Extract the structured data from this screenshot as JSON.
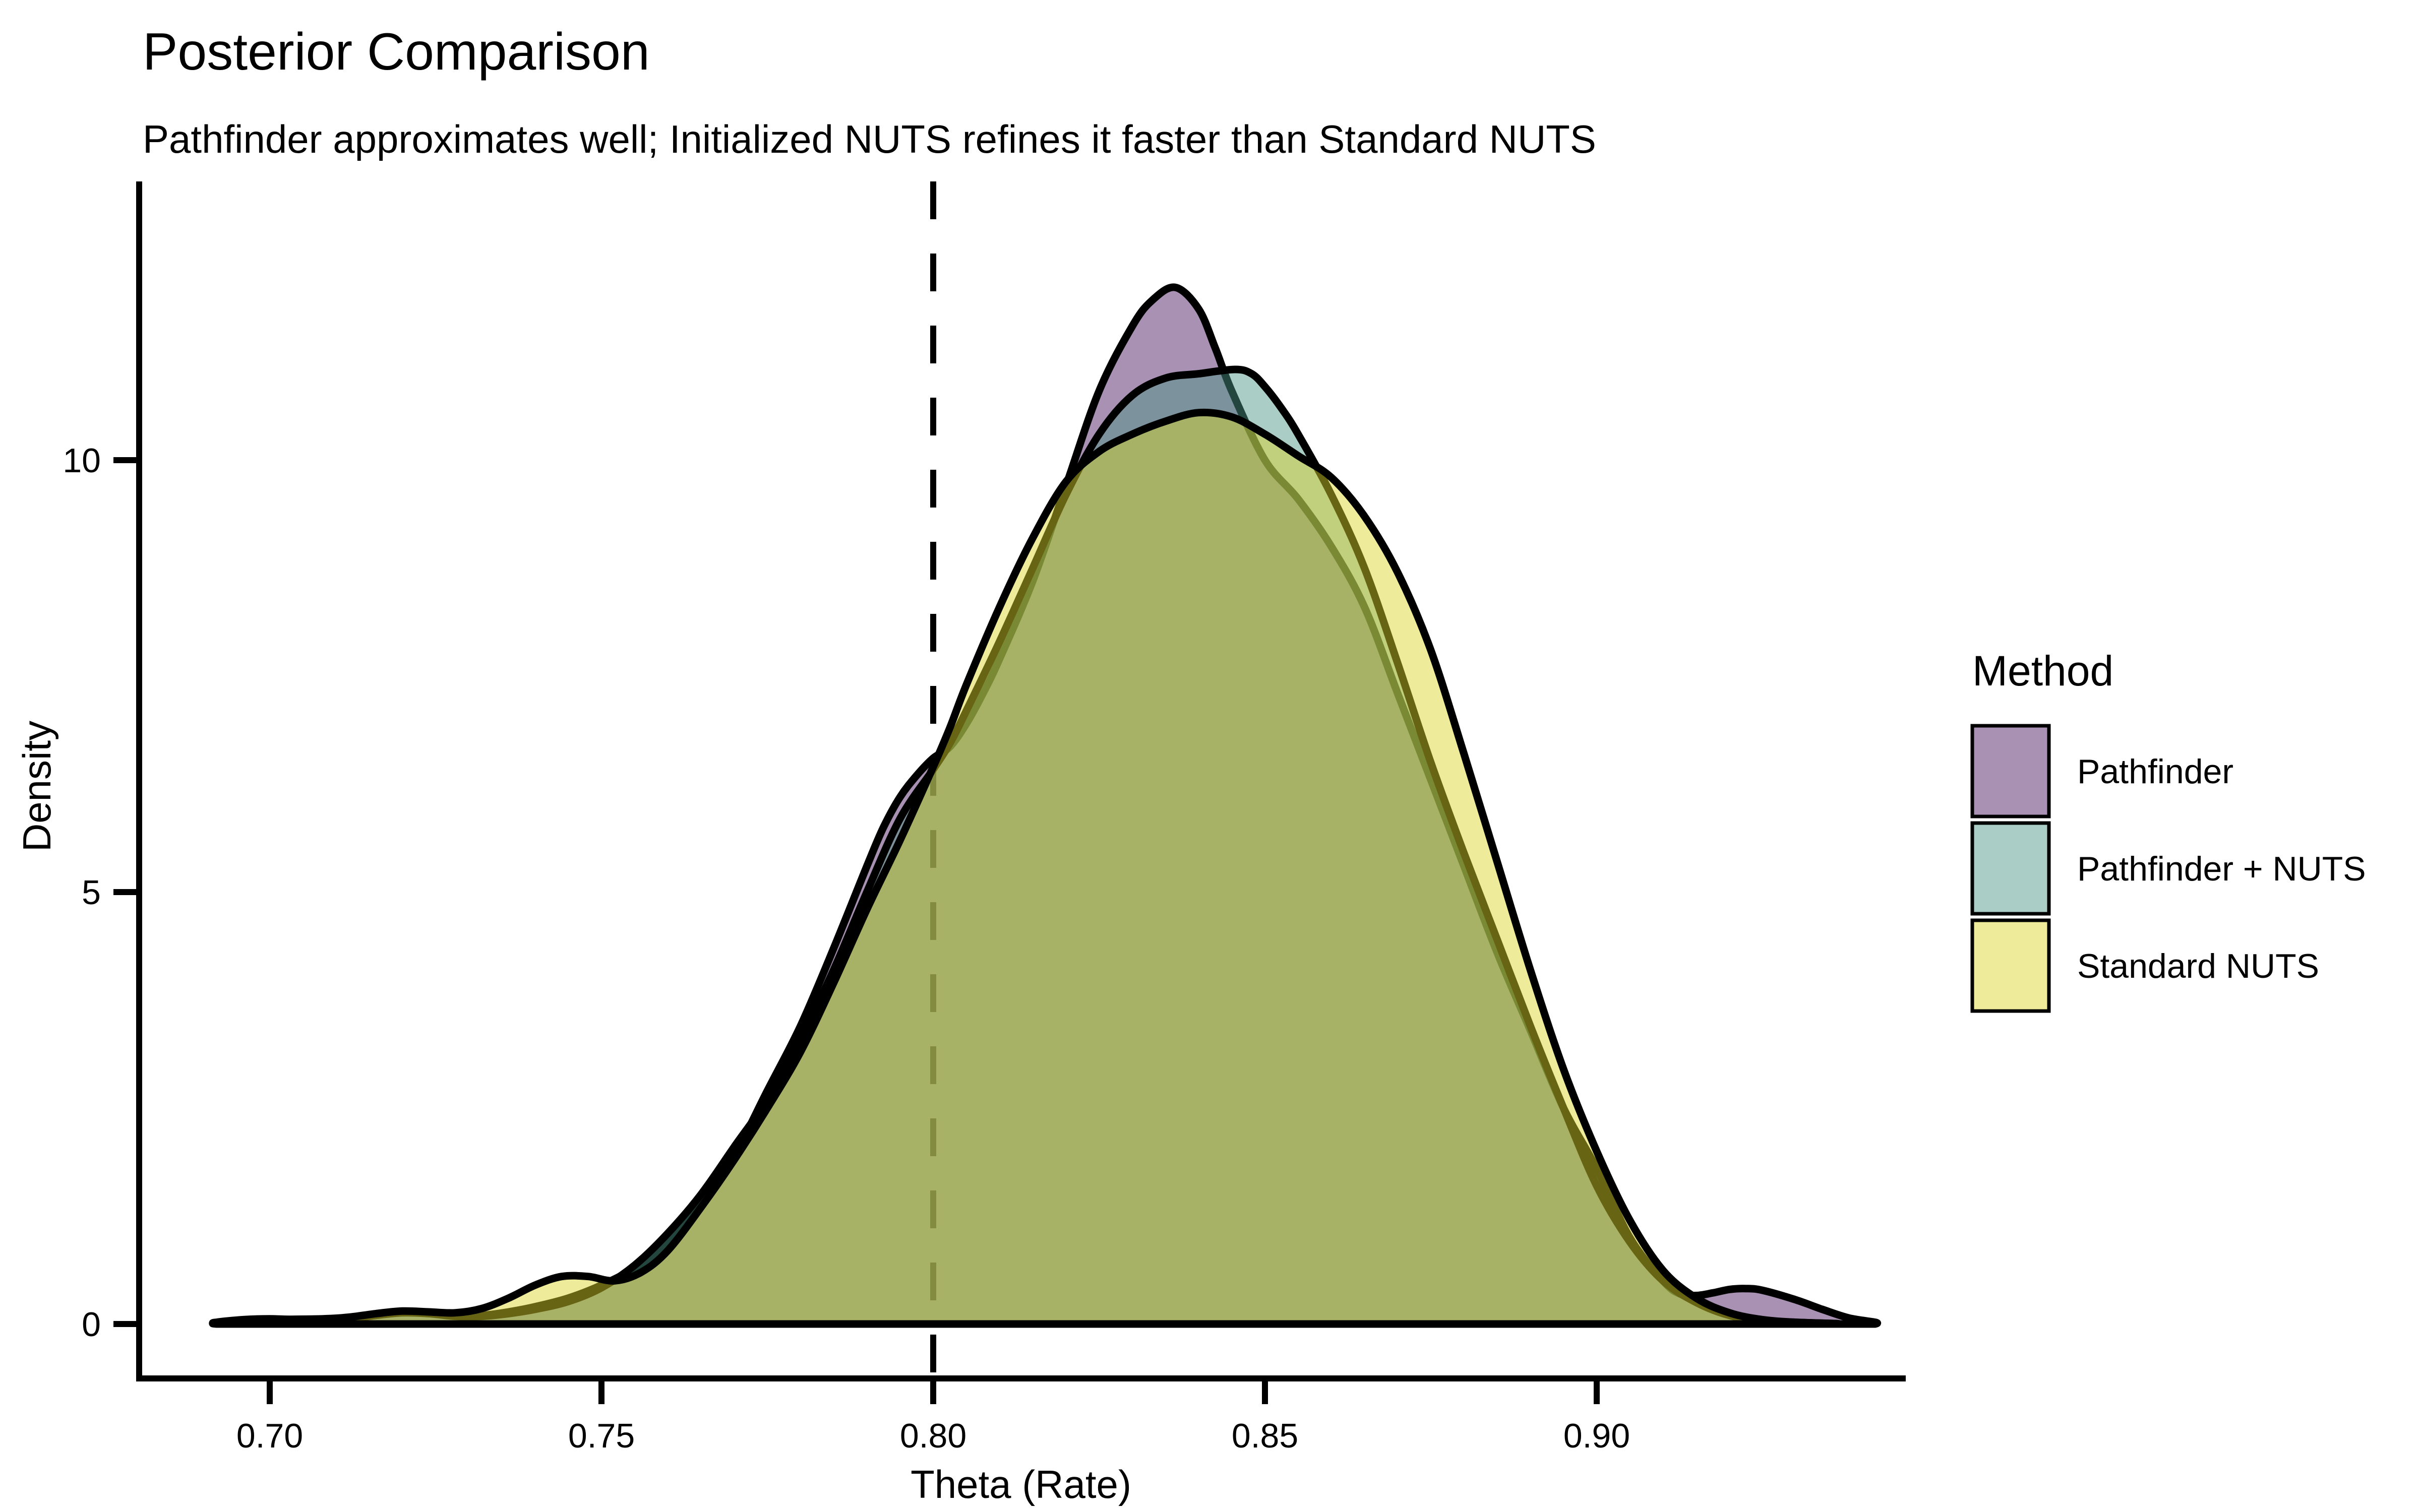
{
  "chart_data": {
    "type": "area",
    "variant": "overlapping-density",
    "title": "Posterior Comparison",
    "subtitle": "Pathfinder approximates well; Initialized NUTS refines it faster than Standard NUTS",
    "xlabel": "Theta (Rate)",
    "ylabel": "Density",
    "xlim": [
      0.68,
      0.947
    ],
    "ylim": [
      0,
      13.1
    ],
    "grid": false,
    "background": "#ffffff",
    "stroke_color": "#000000",
    "axis_color": "#000000",
    "legend_position": "right",
    "legend_title": "Method",
    "x_ticks": [
      {
        "v": 0.7,
        "label": "0.70"
      },
      {
        "v": 0.75,
        "label": "0.75"
      },
      {
        "v": 0.8,
        "label": "0.80"
      },
      {
        "v": 0.85,
        "label": "0.85"
      },
      {
        "v": 0.9,
        "label": "0.90"
      }
    ],
    "y_ticks": [
      {
        "v": 0,
        "label": "0"
      },
      {
        "v": 5,
        "label": "5"
      },
      {
        "v": 10,
        "label": "10"
      }
    ],
    "vline": {
      "x": 0.8,
      "linetype": "dashed",
      "color": "#000000"
    },
    "series": [
      {
        "name": "Pathfinder",
        "fill": "rgba(72,21,95,0.47)",
        "swatch": "#a991b4",
        "peak": {
          "x": 0.8365,
          "y": 12.0
        },
        "points": [
          [
            0.692,
            0.02
          ],
          [
            0.696,
            0.05
          ],
          [
            0.7,
            0.06
          ],
          [
            0.704,
            0.05
          ],
          [
            0.708,
            0.05
          ],
          [
            0.712,
            0.07
          ],
          [
            0.716,
            0.11
          ],
          [
            0.72,
            0.14
          ],
          [
            0.724,
            0.13
          ],
          [
            0.728,
            0.1
          ],
          [
            0.732,
            0.1
          ],
          [
            0.736,
            0.14
          ],
          [
            0.74,
            0.2
          ],
          [
            0.745,
            0.3
          ],
          [
            0.75,
            0.45
          ],
          [
            0.755,
            0.65
          ],
          [
            0.76,
            0.95
          ],
          [
            0.765,
            1.4
          ],
          [
            0.77,
            1.95
          ],
          [
            0.775,
            2.7
          ],
          [
            0.78,
            3.45
          ],
          [
            0.785,
            4.35
          ],
          [
            0.79,
            5.3
          ],
          [
            0.7925,
            5.75
          ],
          [
            0.795,
            6.1
          ],
          [
            0.7975,
            6.35
          ],
          [
            0.8,
            6.55
          ],
          [
            0.8025,
            6.68
          ],
          [
            0.805,
            6.95
          ],
          [
            0.8075,
            7.3
          ],
          [
            0.81,
            7.7
          ],
          [
            0.815,
            8.6
          ],
          [
            0.82,
            9.7
          ],
          [
            0.825,
            10.8
          ],
          [
            0.83,
            11.55
          ],
          [
            0.833,
            11.85
          ],
          [
            0.8365,
            12.0
          ],
          [
            0.84,
            11.75
          ],
          [
            0.8425,
            11.3
          ],
          [
            0.845,
            10.8
          ],
          [
            0.85,
            10.0
          ],
          [
            0.855,
            9.55
          ],
          [
            0.86,
            9.0
          ],
          [
            0.865,
            8.3
          ],
          [
            0.87,
            7.3
          ],
          [
            0.875,
            6.3
          ],
          [
            0.88,
            5.3
          ],
          [
            0.885,
            4.3
          ],
          [
            0.89,
            3.4
          ],
          [
            0.895,
            2.5
          ],
          [
            0.9,
            1.8
          ],
          [
            0.905,
            1.0
          ],
          [
            0.91,
            0.5
          ],
          [
            0.9125,
            0.35
          ],
          [
            0.915,
            0.33
          ],
          [
            0.9175,
            0.36
          ],
          [
            0.92,
            0.4
          ],
          [
            0.9225,
            0.41
          ],
          [
            0.925,
            0.39
          ],
          [
            0.93,
            0.28
          ],
          [
            0.934,
            0.17
          ],
          [
            0.938,
            0.07
          ],
          [
            0.942,
            0.02
          ]
        ]
      },
      {
        "name": "Pathfinder + NUTS",
        "fill": "rgba(74,149,134,0.47)",
        "swatch": "#aacdc6",
        "peak": {
          "x": 0.8455,
          "y": 11.05
        },
        "points": [
          [
            0.692,
            0.01
          ],
          [
            0.7,
            0.04
          ],
          [
            0.708,
            0.04
          ],
          [
            0.712,
            0.06
          ],
          [
            0.716,
            0.1
          ],
          [
            0.72,
            0.13
          ],
          [
            0.724,
            0.12
          ],
          [
            0.728,
            0.09
          ],
          [
            0.732,
            0.09
          ],
          [
            0.736,
            0.12
          ],
          [
            0.74,
            0.17
          ],
          [
            0.745,
            0.26
          ],
          [
            0.75,
            0.42
          ],
          [
            0.755,
            0.68
          ],
          [
            0.76,
            1.05
          ],
          [
            0.765,
            1.5
          ],
          [
            0.77,
            2.05
          ],
          [
            0.775,
            2.6
          ],
          [
            0.78,
            3.3
          ],
          [
            0.785,
            4.1
          ],
          [
            0.79,
            5.0
          ],
          [
            0.795,
            5.85
          ],
          [
            0.8,
            6.42
          ],
          [
            0.8025,
            6.72
          ],
          [
            0.805,
            7.1
          ],
          [
            0.81,
            7.9
          ],
          [
            0.815,
            8.75
          ],
          [
            0.82,
            9.6
          ],
          [
            0.825,
            10.3
          ],
          [
            0.83,
            10.75
          ],
          [
            0.835,
            10.95
          ],
          [
            0.84,
            11.0
          ],
          [
            0.8455,
            11.05
          ],
          [
            0.848,
            11.0
          ],
          [
            0.85,
            10.85
          ],
          [
            0.8525,
            10.6
          ],
          [
            0.855,
            10.3
          ],
          [
            0.86,
            9.6
          ],
          [
            0.865,
            8.75
          ],
          [
            0.87,
            7.65
          ],
          [
            0.875,
            6.5
          ],
          [
            0.88,
            5.45
          ],
          [
            0.885,
            4.45
          ],
          [
            0.89,
            3.45
          ],
          [
            0.895,
            2.5
          ],
          [
            0.9,
            1.6
          ],
          [
            0.905,
            0.95
          ],
          [
            0.91,
            0.5
          ],
          [
            0.915,
            0.25
          ],
          [
            0.92,
            0.1
          ],
          [
            0.925,
            0.04
          ],
          [
            0.93,
            0.02
          ],
          [
            0.936,
            0.005
          ]
        ]
      },
      {
        "name": "Standard NUTS",
        "fill": "rgba(219,213,40,0.47)",
        "swatch": "#eeeb9a",
        "peak": {
          "x": 0.84,
          "y": 10.55
        },
        "points": [
          [
            0.692,
            0.02
          ],
          [
            0.7,
            0.05
          ],
          [
            0.708,
            0.06
          ],
          [
            0.712,
            0.08
          ],
          [
            0.716,
            0.12
          ],
          [
            0.72,
            0.15
          ],
          [
            0.724,
            0.14
          ],
          [
            0.728,
            0.13
          ],
          [
            0.732,
            0.18
          ],
          [
            0.736,
            0.3
          ],
          [
            0.74,
            0.45
          ],
          [
            0.744,
            0.55
          ],
          [
            0.748,
            0.55
          ],
          [
            0.752,
            0.5
          ],
          [
            0.756,
            0.6
          ],
          [
            0.76,
            0.85
          ],
          [
            0.765,
            1.35
          ],
          [
            0.77,
            1.9
          ],
          [
            0.775,
            2.5
          ],
          [
            0.78,
            3.15
          ],
          [
            0.785,
            3.95
          ],
          [
            0.79,
            4.8
          ],
          [
            0.795,
            5.6
          ],
          [
            0.8,
            6.45
          ],
          [
            0.8025,
            6.9
          ],
          [
            0.805,
            7.4
          ],
          [
            0.81,
            8.3
          ],
          [
            0.815,
            9.1
          ],
          [
            0.82,
            9.75
          ],
          [
            0.825,
            10.1
          ],
          [
            0.83,
            10.3
          ],
          [
            0.835,
            10.45
          ],
          [
            0.84,
            10.55
          ],
          [
            0.845,
            10.5
          ],
          [
            0.85,
            10.3
          ],
          [
            0.855,
            10.05
          ],
          [
            0.86,
            9.8
          ],
          [
            0.865,
            9.35
          ],
          [
            0.87,
            8.7
          ],
          [
            0.875,
            7.8
          ],
          [
            0.88,
            6.6
          ],
          [
            0.885,
            5.35
          ],
          [
            0.89,
            4.1
          ],
          [
            0.895,
            2.95
          ],
          [
            0.9,
            2.0
          ],
          [
            0.905,
            1.2
          ],
          [
            0.91,
            0.62
          ],
          [
            0.915,
            0.3
          ],
          [
            0.92,
            0.13
          ],
          [
            0.925,
            0.05
          ],
          [
            0.93,
            0.02
          ],
          [
            0.936,
            0.005
          ]
        ]
      }
    ]
  }
}
